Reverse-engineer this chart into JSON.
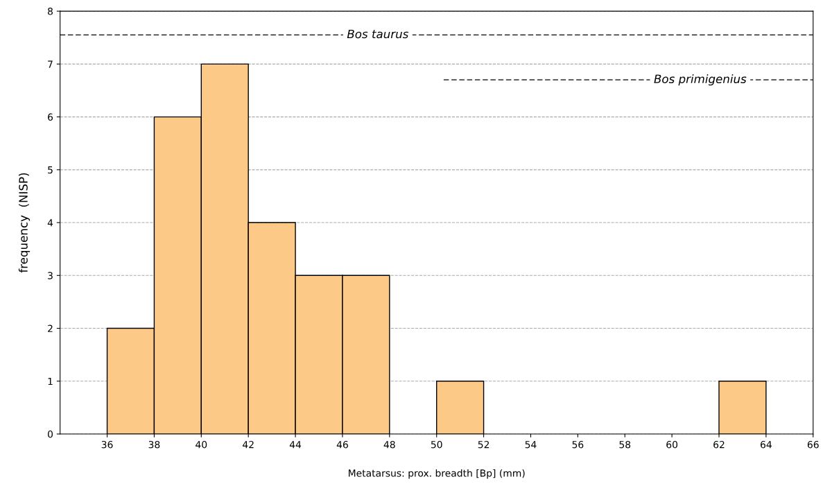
{
  "chart_data": {
    "type": "histogram",
    "xlabel": "Metatarsus: prox. breadth [Bp] (mm)",
    "ylabel": "frequency  (NISP)",
    "bins": [
      36,
      38,
      40,
      42,
      44,
      46,
      48,
      50,
      52,
      54,
      56,
      58,
      60,
      62,
      64
    ],
    "values": [
      2,
      6,
      7,
      4,
      3,
      3,
      0,
      1,
      0,
      0,
      0,
      0,
      0,
      1
    ],
    "color": "#fdc986",
    "series": [
      {
        "type": "line",
        "color": "#000000",
        "line_style": "dashed",
        "x": [
          34,
          66
        ],
        "values": [
          7.55,
          7.55
        ]
      },
      {
        "type": "line",
        "color": "#000000",
        "line_style": "dashed",
        "x": [
          50.3,
          66
        ],
        "values": [
          6.7,
          6.7
        ]
      }
    ],
    "annotations": [
      {
        "text": "Bos taurus",
        "x": 47.5,
        "y": 7.55
      },
      {
        "text": "Bos primigenius",
        "x": 61.2,
        "y": 6.7
      }
    ],
    "xlim": [
      34,
      66
    ],
    "xticks": [
      36,
      38,
      40,
      42,
      44,
      46,
      48,
      50,
      52,
      54,
      56,
      58,
      60,
      62,
      64,
      66
    ],
    "ylim": [
      0,
      8
    ],
    "yticks": [
      0,
      1,
      2,
      3,
      4,
      5,
      6,
      7,
      8
    ],
    "grid": "y",
    "legend": false
  }
}
